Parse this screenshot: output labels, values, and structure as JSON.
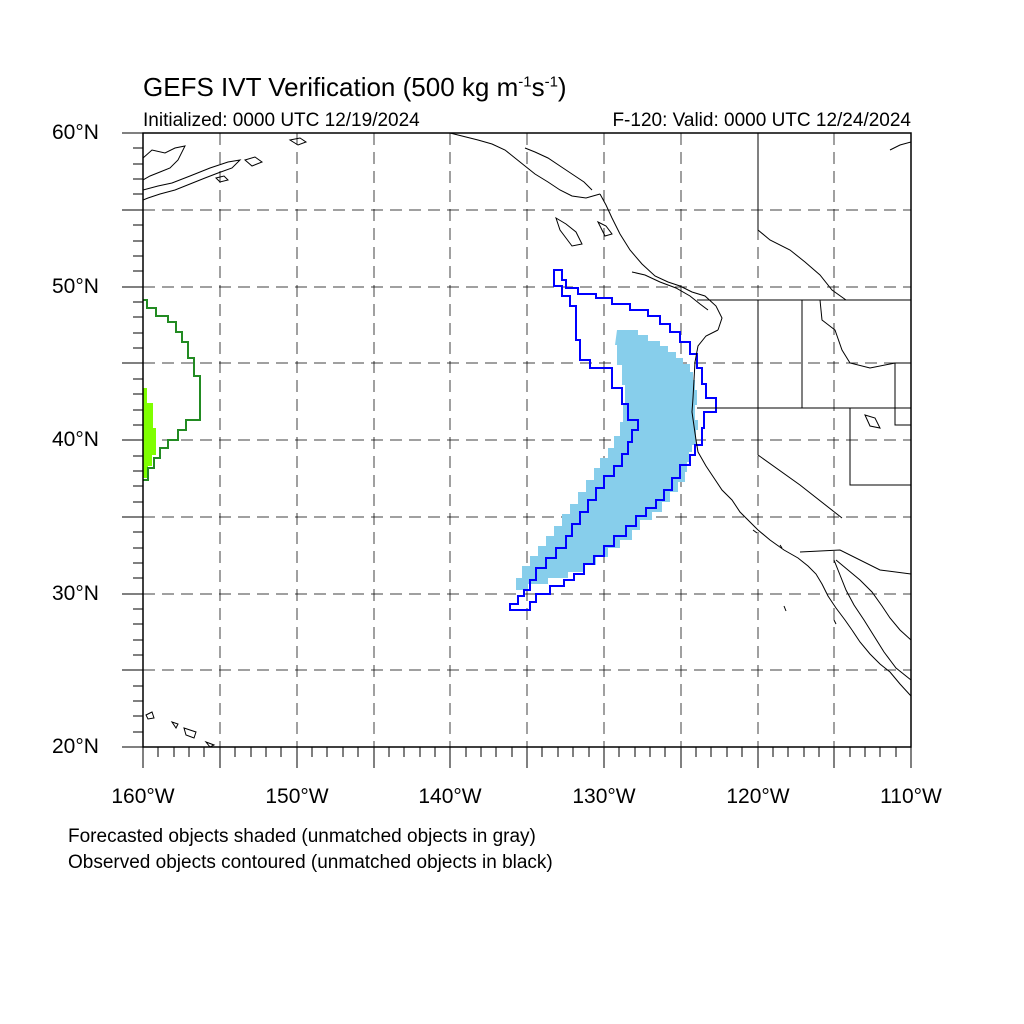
{
  "figure": {
    "title_prefix": "GEFS IVT Verification (500 kg m",
    "title_sup1": "-1",
    "title_mid": "s",
    "title_sup2": "-1",
    "title_suffix": ")",
    "initialized": "Initialized: 0000 UTC 12/19/2024",
    "valid": "F-120: Valid: 0000 UTC 12/24/2024"
  },
  "map": {
    "projection": "cylindrical equidistant",
    "lon_range": [
      -160,
      -110
    ],
    "lat_range": [
      20,
      60
    ],
    "grid": "dashed every 5 degrees",
    "lat_labels": [
      "60°N",
      "50°N",
      "40°N",
      "30°N",
      "20°N"
    ],
    "lon_labels": [
      "160°W",
      "150°W",
      "140°W",
      "130°W",
      "120°W",
      "110°W"
    ],
    "objects": [
      {
        "kind": "forecast-shaded",
        "color": "#87ceeb",
        "lon_extent": [
          -136,
          -124
        ],
        "lat_extent": [
          30,
          47
        ]
      },
      {
        "kind": "observed-contour",
        "color": "#0000ff",
        "lon_extent": [
          -136,
          -123
        ],
        "lat_extent": [
          29,
          51
        ]
      },
      {
        "kind": "forecast-shaded",
        "color": "#7fff00",
        "lon_extent": [
          -160,
          -159
        ],
        "lat_extent": [
          37,
          43
        ]
      },
      {
        "kind": "observed-contour",
        "color": "#228b22",
        "lon_extent": [
          -160,
          -156
        ],
        "lat_extent": [
          37,
          49
        ]
      }
    ]
  },
  "notes": {
    "forecast": "Forecasted objects shaded (unmatched objects in gray)",
    "observed": "Observed objects contoured (unmatched objects in black)"
  }
}
